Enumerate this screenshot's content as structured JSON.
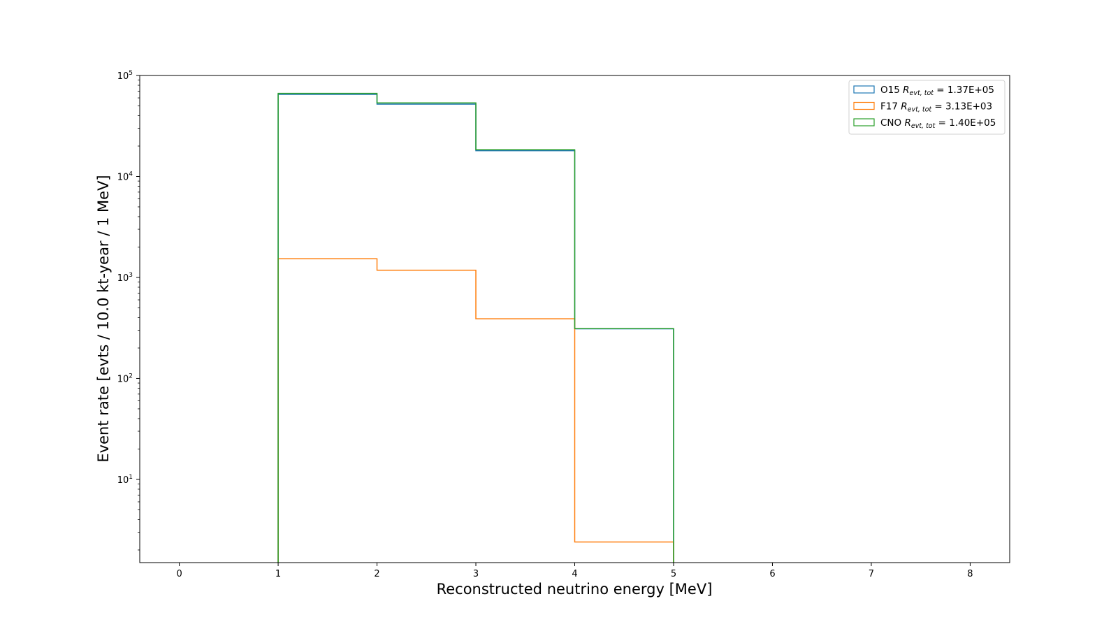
{
  "chart_data": {
    "type": "histogram-step",
    "xlabel": "Reconstructed neutrino energy [MeV]",
    "ylabel": "Event rate [evts / 10.0 kt-year / 1 MeV]",
    "yscale": "log",
    "xlim": [
      -0.4,
      8.4
    ],
    "ylim": [
      1.5,
      100000
    ],
    "xticks": [
      "0",
      "1",
      "2",
      "3",
      "4",
      "5",
      "6",
      "7",
      "8"
    ],
    "yticks": [
      {
        "value": 10,
        "base": "10",
        "exp": "1"
      },
      {
        "value": 100,
        "base": "10",
        "exp": "2"
      },
      {
        "value": 1000,
        "base": "10",
        "exp": "3"
      },
      {
        "value": 10000,
        "base": "10",
        "exp": "4"
      },
      {
        "value": 100000,
        "base": "10",
        "exp": "5"
      }
    ],
    "bin_edges": [
      1,
      2,
      3,
      4,
      5
    ],
    "series": [
      {
        "name": "O15",
        "color": "#1f77b4",
        "values": [
          65000,
          52000,
          18000,
          310
        ],
        "legend_value": "1.37E+05"
      },
      {
        "name": "F17",
        "color": "#ff7f0e",
        "values": [
          1530,
          1180,
          390,
          2.4
        ],
        "legend_value": "3.13E+03"
      },
      {
        "name": "CNO",
        "color": "#2ca02c",
        "values": [
          66500,
          53500,
          18400,
          312
        ],
        "legend_value": "1.40E+05"
      }
    ],
    "legend_position": "top-right",
    "legend_rate_symbol": "R",
    "legend_rate_subscript": "evt, tot"
  }
}
